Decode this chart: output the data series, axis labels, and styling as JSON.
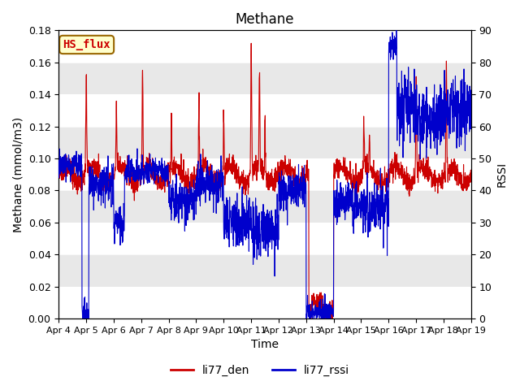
{
  "title": "Methane",
  "xlabel": "Time",
  "ylabel_left": "Methane (mmol/m3)",
  "ylabel_right": "RSSI",
  "annotation_text": "HS_flux",
  "ylim_left": [
    0.0,
    0.18
  ],
  "ylim_right": [
    0,
    90
  ],
  "yticks_left": [
    0.0,
    0.02,
    0.04,
    0.06,
    0.08,
    0.1,
    0.12,
    0.14,
    0.16,
    0.18
  ],
  "yticks_right": [
    0,
    10,
    20,
    30,
    40,
    50,
    60,
    70,
    80,
    90
  ],
  "xtick_labels": [
    "Apr 4",
    "Apr 5",
    "Apr 6",
    "Apr 7",
    "Apr 8",
    "Apr 9",
    "Apr 10",
    "Apr 11",
    "Apr 12",
    "Apr 13",
    "Apr 14",
    "Apr 15",
    "Apr 16",
    "Apr 17",
    "Apr 18",
    "Apr 19"
  ],
  "color_den": "#cc0000",
  "color_rssi": "#0000cc",
  "legend_labels": [
    "li77_den",
    "li77_rssi"
  ],
  "bg_color": "#f0f0f0",
  "stripe_color": "#e8e8e8",
  "annotation_bg": "#ffffcc",
  "annotation_border": "#996600",
  "annotation_text_color": "#cc0000"
}
